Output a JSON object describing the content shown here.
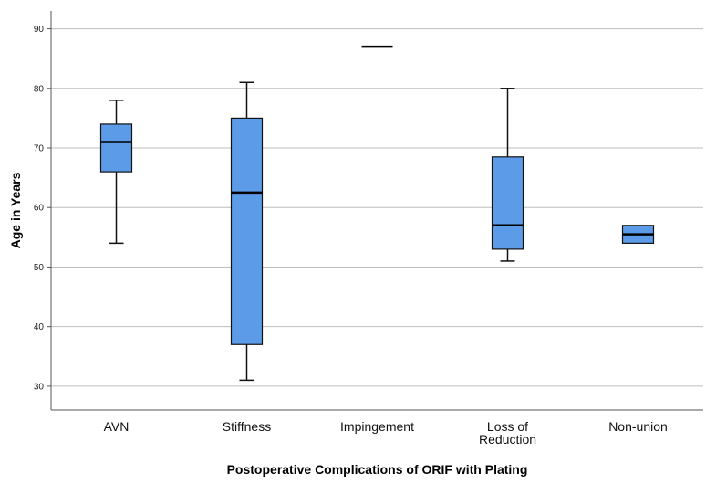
{
  "chart_data": {
    "type": "box",
    "xlabel": "Postoperative Complications of ORIF with Plating",
    "ylabel": "Age in Years",
    "ylim": [
      26,
      93
    ],
    "yticks": [
      30,
      40,
      50,
      60,
      70,
      80,
      90
    ],
    "grid": true,
    "box_color": "#5b9be8",
    "categories": [
      {
        "label": [
          "AVN"
        ],
        "min": 54,
        "q1": 66,
        "median": 71,
        "q3": 74,
        "max": 78
      },
      {
        "label": [
          "Stiffness"
        ],
        "min": 31,
        "q1": 37,
        "median": 62.5,
        "q3": 75,
        "max": 81
      },
      {
        "label": [
          "Impingement"
        ],
        "min": 87,
        "q1": 87,
        "median": 87,
        "q3": 87,
        "max": 87
      },
      {
        "label": [
          "Loss of",
          "Reduction"
        ],
        "min": 51,
        "q1": 53,
        "median": 57,
        "q3": 68.5,
        "max": 80
      },
      {
        "label": [
          "Non-union"
        ],
        "min": 54,
        "q1": 54,
        "median": 55.5,
        "q3": 57,
        "max": 57
      }
    ]
  }
}
